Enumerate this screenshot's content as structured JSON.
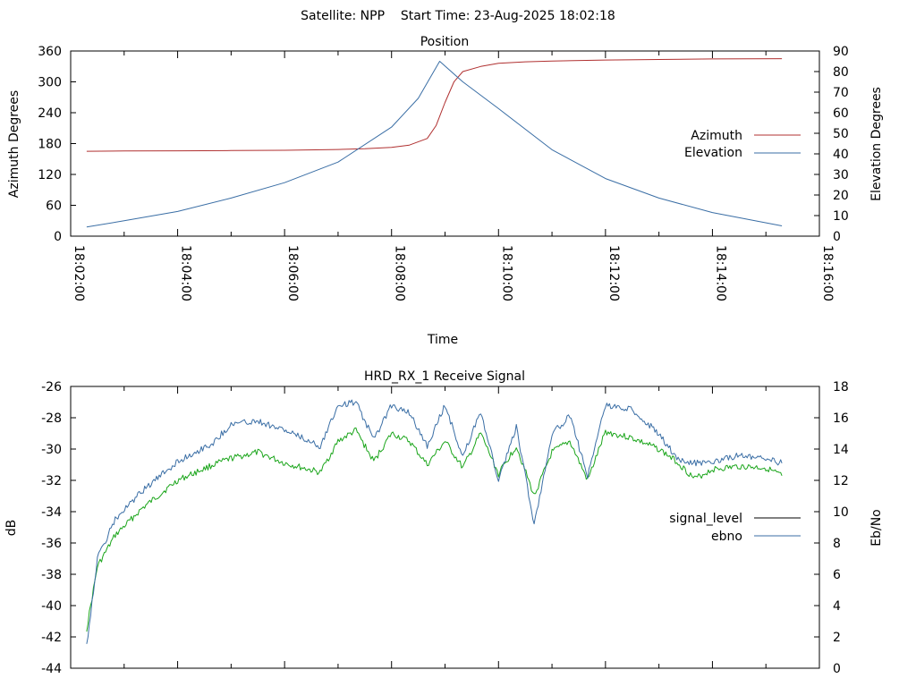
{
  "header": {
    "title": "Satellite: NPP    Start Time: 23-Aug-2025 18:02:18"
  },
  "colors": {
    "azimuth": "#b03030",
    "elevation": "#3a6ea5",
    "signal_level": "#000000",
    "ebno_line": "#3a6ea5",
    "ebno_trace": "#1aa51a"
  },
  "chart_data": [
    {
      "type": "line",
      "title": "Position",
      "xlabel": "Time",
      "ylabel": "Azimuth Degrees",
      "y2label": "Elevation Degrees",
      "xlim": [
        "18:02:00",
        "18:16:00"
      ],
      "xticks": [
        "18:02:00",
        "18:04:00",
        "18:06:00",
        "18:08:00",
        "18:10:00",
        "18:12:00",
        "18:14:00",
        "18:16:00"
      ],
      "ylim": [
        0,
        360
      ],
      "yticks": [
        "0",
        "60",
        "120",
        "180",
        "240",
        "300",
        "360"
      ],
      "y2lim": [
        0,
        90
      ],
      "y2ticks": [
        "0",
        "10",
        "20",
        "30",
        "40",
        "50",
        "60",
        "70",
        "80",
        "90"
      ],
      "legend_position": "right",
      "grid": false,
      "series": [
        {
          "name": "Azimuth",
          "axis": "left",
          "x": [
            "18:02:18",
            "18:03:00",
            "18:04:00",
            "18:05:00",
            "18:06:00",
            "18:07:00",
            "18:07:30",
            "18:08:00",
            "18:08:20",
            "18:08:40",
            "18:08:50",
            "18:09:00",
            "18:09:10",
            "18:09:20",
            "18:09:40",
            "18:10:00",
            "18:10:30",
            "18:11:00",
            "18:12:00",
            "18:13:00",
            "18:14:00",
            "18:15:18"
          ],
          "values": [
            165,
            165.5,
            166,
            166.5,
            167,
            168.5,
            170,
            172.5,
            177,
            190,
            215,
            260,
            300,
            320,
            330,
            336,
            339,
            340.5,
            342.5,
            343.5,
            344.5,
            345
          ]
        },
        {
          "name": "Elevation",
          "axis": "right",
          "x": [
            "18:02:18",
            "18:03:00",
            "18:04:00",
            "18:05:00",
            "18:06:00",
            "18:07:00",
            "18:08:00",
            "18:08:30",
            "18:08:54",
            "18:09:20",
            "18:10:00",
            "18:11:00",
            "18:12:00",
            "18:13:00",
            "18:14:00",
            "18:15:18"
          ],
          "values": [
            4.5,
            7.5,
            12,
            18.5,
            26,
            36,
            53,
            67,
            85,
            75,
            62,
            42,
            28,
            18.5,
            11.5,
            5
          ]
        }
      ]
    },
    {
      "type": "line",
      "title": "HRD_RX_1 Receive Signal",
      "xlabel": "",
      "ylabel": "dB",
      "y2label": "Eb/No",
      "xlim": [
        "18:02:00",
        "18:16:00"
      ],
      "ylim": [
        -44,
        -26
      ],
      "yticks": [
        "-44",
        "-42",
        "-40",
        "-38",
        "-36",
        "-34",
        "-32",
        "-30",
        "-28",
        "-26"
      ],
      "y2lim": [
        0,
        18
      ],
      "y2ticks": [
        "0",
        "2",
        "4",
        "6",
        "8",
        "10",
        "12",
        "14",
        "16",
        "18"
      ],
      "legend_position": "right",
      "grid": false,
      "series": [
        {
          "name": "signal_level",
          "axis": "left",
          "x": [
            "18:02:18",
            "18:02:30",
            "18:02:50",
            "18:03:20",
            "18:04:00",
            "18:04:40",
            "18:05:00",
            "18:05:30",
            "18:06:00",
            "18:06:40",
            "18:07:00",
            "18:07:20",
            "18:07:40",
            "18:08:00",
            "18:08:20",
            "18:08:40",
            "18:09:00",
            "18:09:20",
            "18:09:40",
            "18:10:00",
            "18:10:20",
            "18:10:40",
            "18:11:00",
            "18:11:20",
            "18:11:40",
            "18:12:00",
            "18:12:30",
            "18:13:00",
            "18:13:20",
            "18:13:40",
            "18:14:00",
            "18:14:30",
            "18:15:00",
            "18:15:18"
          ],
          "values": [
            -41.5,
            -37.5,
            -35.5,
            -33.8,
            -32,
            -31,
            -30.6,
            -30.2,
            -30.9,
            -31.5,
            -29.5,
            -28.8,
            -30.8,
            -29,
            -29.5,
            -31,
            -29.5,
            -31.2,
            -29,
            -31.6,
            -29.8,
            -33,
            -30.2,
            -29.5,
            -32,
            -28.9,
            -29.3,
            -30,
            -30.8,
            -31.9,
            -31.3,
            -31.1,
            -31.2,
            -31.7
          ]
        },
        {
          "name": "ebno",
          "axis": "right",
          "x": [
            "18:02:18",
            "18:02:30",
            "18:02:50",
            "18:03:20",
            "18:04:00",
            "18:04:40",
            "18:05:00",
            "18:05:30",
            "18:06:00",
            "18:06:40",
            "18:07:00",
            "18:07:20",
            "18:07:40",
            "18:08:00",
            "18:08:20",
            "18:08:40",
            "18:09:00",
            "18:09:20",
            "18:09:40",
            "18:10:00",
            "18:10:20",
            "18:10:40",
            "18:11:00",
            "18:11:20",
            "18:11:40",
            "18:12:00",
            "18:12:30",
            "18:13:00",
            "18:13:20",
            "18:13:40",
            "18:14:00",
            "18:14:30",
            "18:15:00",
            "18:15:18"
          ],
          "values": [
            1.5,
            7,
            9.5,
            11.3,
            13.2,
            14.4,
            15.6,
            15.8,
            15.2,
            14.2,
            16.8,
            17,
            14.6,
            16.8,
            16.3,
            14.2,
            16.8,
            13.5,
            16.4,
            12,
            15.4,
            9.2,
            15,
            16.1,
            12.3,
            16.8,
            16.5,
            15,
            13.4,
            13.1,
            13.2,
            13.6,
            13.4,
            13.1
          ]
        }
      ]
    }
  ]
}
